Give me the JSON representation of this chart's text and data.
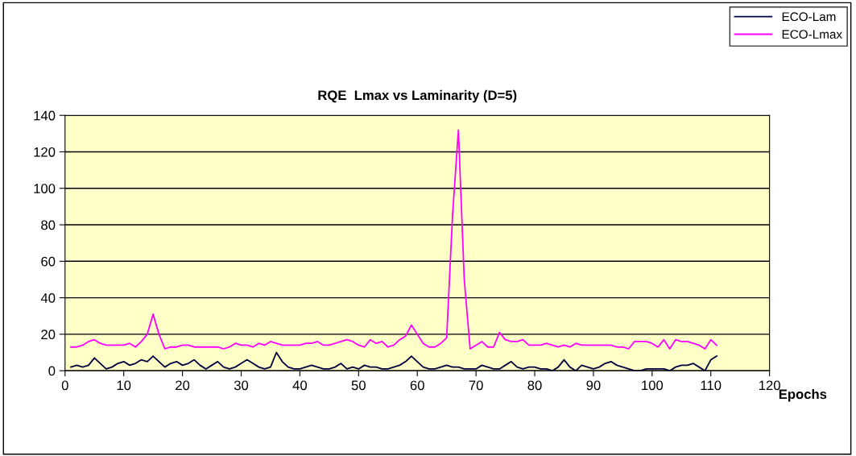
{
  "chart_data": {
    "type": "line",
    "title": "RQE  Lmax vs Laminarity (D=5)",
    "xlabel": "Epochs",
    "xlim": [
      0,
      120
    ],
    "xticks": [
      0,
      10,
      20,
      30,
      40,
      50,
      60,
      70,
      80,
      90,
      100,
      110,
      120
    ],
    "ylim": [
      0,
      140
    ],
    "yticks": [
      0,
      20,
      40,
      60,
      80,
      100,
      120,
      140
    ],
    "grid": "y",
    "legend": "top right",
    "marker": "none",
    "x": [
      1,
      2,
      3,
      4,
      5,
      6,
      7,
      8,
      9,
      10,
      11,
      12,
      13,
      14,
      15,
      16,
      17,
      18,
      19,
      20,
      21,
      22,
      23,
      24,
      25,
      26,
      27,
      28,
      29,
      30,
      31,
      32,
      33,
      34,
      35,
      36,
      37,
      38,
      39,
      40,
      41,
      42,
      43,
      44,
      45,
      46,
      47,
      48,
      49,
      50,
      51,
      52,
      53,
      54,
      55,
      56,
      57,
      58,
      59,
      60,
      61,
      62,
      63,
      64,
      65,
      66,
      67,
      68,
      69,
      70,
      71,
      72,
      73,
      74,
      75,
      76,
      77,
      78,
      79,
      80,
      81,
      82,
      83,
      84,
      85,
      86,
      87,
      88,
      89,
      90,
      91,
      92,
      93,
      94,
      95,
      96,
      97,
      98,
      99,
      100,
      101,
      102,
      103,
      104,
      105,
      106,
      107,
      108,
      109,
      110,
      111
    ],
    "series": [
      {
        "name": "ECO-Lam",
        "color": "#000040",
        "values": [
          2,
          3,
          2,
          3,
          7,
          4,
          1,
          2,
          4,
          5,
          3,
          4,
          6,
          5,
          8,
          5,
          2,
          4,
          5,
          3,
          4,
          6,
          3,
          1,
          3,
          5,
          2,
          1,
          2,
          4,
          6,
          4,
          2,
          1,
          2,
          10,
          5,
          2,
          1,
          1,
          2,
          3,
          2,
          1,
          1,
          2,
          4,
          1,
          2,
          1,
          3,
          2,
          2,
          1,
          1,
          2,
          3,
          5,
          8,
          5,
          2,
          1,
          1,
          2,
          3,
          2,
          2,
          1,
          1,
          1,
          3,
          2,
          1,
          1,
          3,
          5,
          2,
          1,
          2,
          2,
          1,
          1,
          0,
          2,
          6,
          2,
          0,
          3,
          2,
          1,
          2,
          4,
          5,
          3,
          2,
          1,
          0,
          0,
          1,
          1,
          1,
          1,
          0,
          2,
          3,
          3,
          4,
          2,
          0,
          6,
          8
        ]
      },
      {
        "name": "ECO-Lmax",
        "color": "#ff00ff",
        "values": [
          13,
          13,
          14,
          16,
          17,
          15,
          14,
          14,
          14,
          14,
          15,
          13,
          16,
          20,
          31,
          20,
          12,
          13,
          13,
          14,
          14,
          13,
          13,
          13,
          13,
          13,
          12,
          13,
          15,
          14,
          14,
          13,
          15,
          14,
          16,
          15,
          14,
          14,
          14,
          14,
          15,
          15,
          16,
          14,
          14,
          15,
          16,
          17,
          16,
          14,
          13,
          17,
          15,
          16,
          13,
          14,
          17,
          19,
          25,
          20,
          15,
          13,
          13,
          15,
          18,
          85,
          132,
          50,
          12,
          14,
          16,
          13,
          13,
          21,
          17,
          16,
          16,
          17,
          14,
          14,
          14,
          15,
          14,
          13,
          14,
          13,
          15,
          14,
          14,
          14,
          14,
          14,
          14,
          13,
          13,
          12,
          16,
          16,
          16,
          15,
          13,
          17,
          12,
          17,
          16,
          16,
          15,
          14,
          12,
          17,
          14
        ]
      }
    ]
  }
}
